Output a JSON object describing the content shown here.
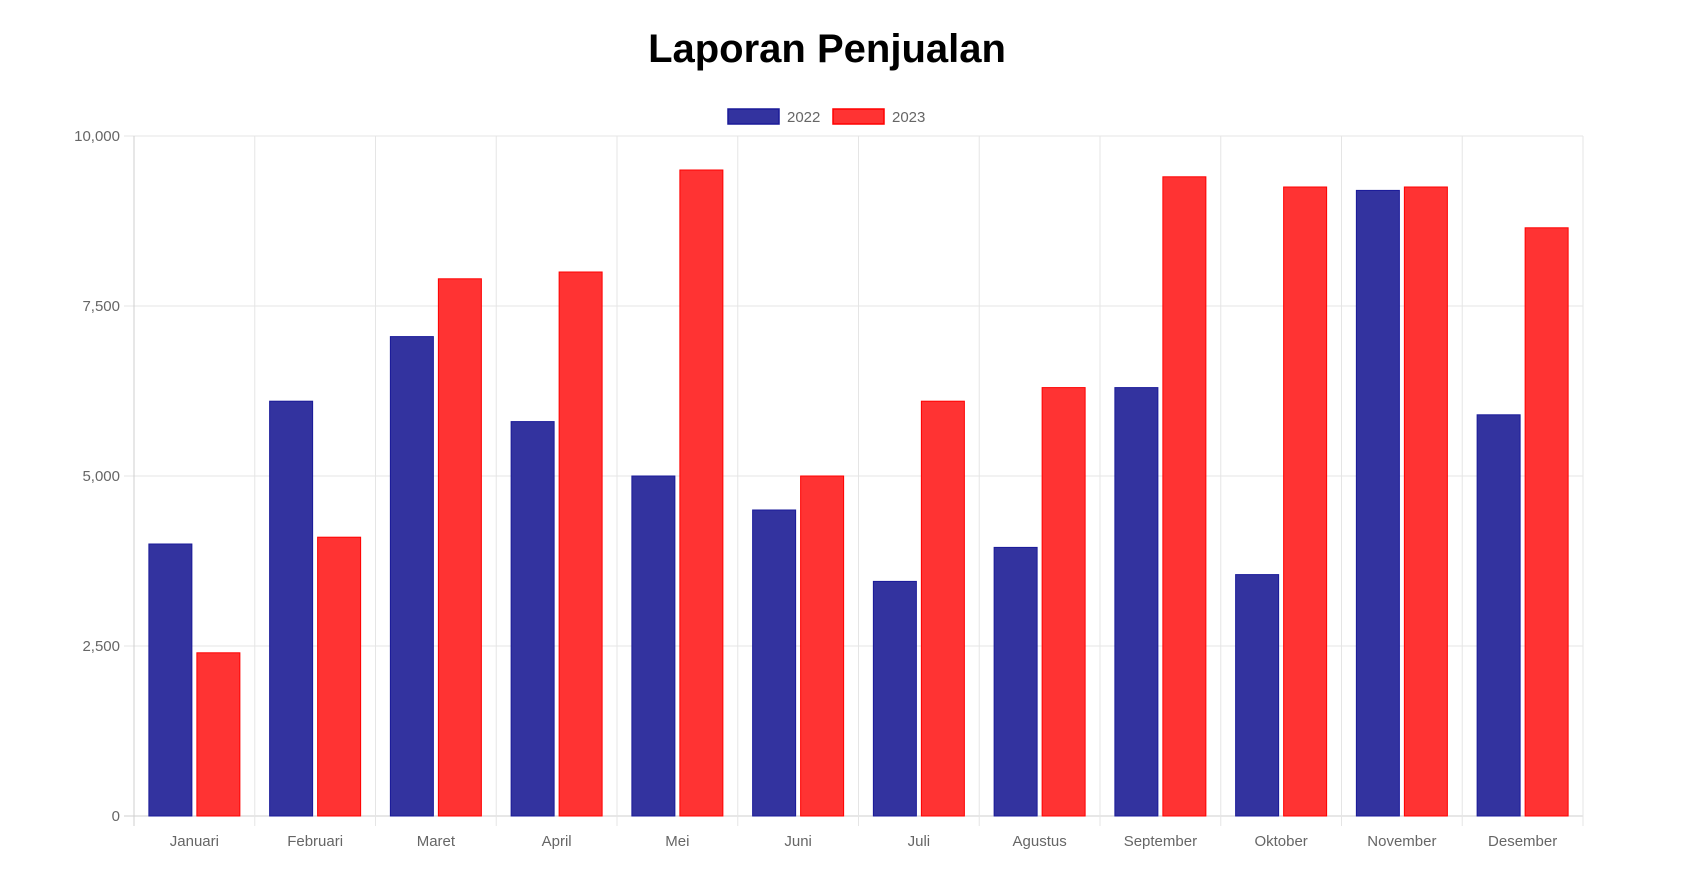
{
  "chart_data": {
    "type": "bar",
    "title": "Laporan Penjualan",
    "xlabel": "",
    "ylabel": "",
    "ylim": [
      0,
      10000
    ],
    "yticks": [
      "0",
      "2,500",
      "5,000",
      "7,500",
      "10,000"
    ],
    "ytick_values": [
      0,
      2500,
      5000,
      7500,
      10000
    ],
    "grid": true,
    "legend_position": "top",
    "categories": [
      "Januari",
      "Februari",
      "Maret",
      "April",
      "Mei",
      "Juni",
      "Juli",
      "Agustus",
      "September",
      "Oktober",
      "November",
      "Desember"
    ],
    "series": [
      {
        "name": "2022",
        "color": "#33339f",
        "border": "#1a1a99",
        "values": [
          4000,
          6100,
          7050,
          5800,
          5000,
          4500,
          3450,
          3950,
          6300,
          3550,
          9200,
          5900
        ]
      },
      {
        "name": "2023",
        "color": "#ff3333",
        "border": "#ff0000",
        "values": [
          2400,
          4100,
          7900,
          8000,
          9500,
          5000,
          6100,
          6300,
          9400,
          9250,
          9250,
          8650
        ]
      }
    ]
  }
}
